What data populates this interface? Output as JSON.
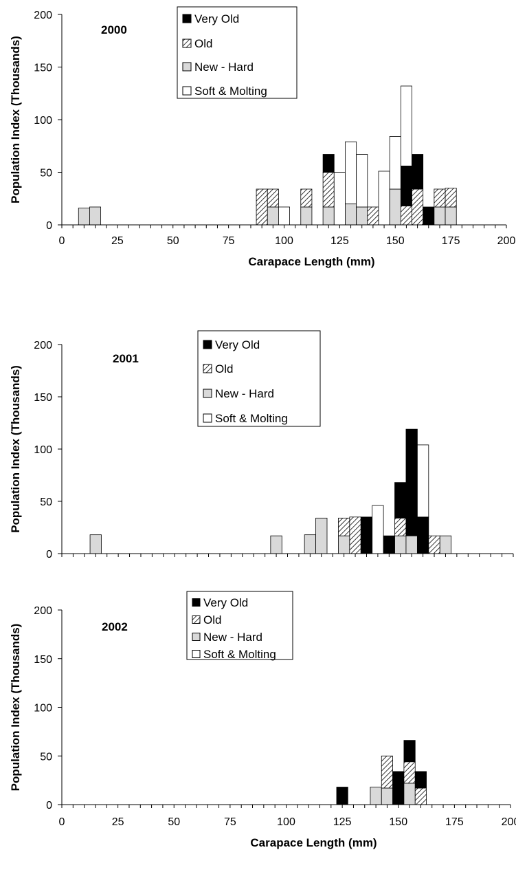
{
  "legend_labels": [
    "Very Old",
    "Old",
    "New - Hard",
    "Soft & Molting"
  ],
  "colors": {
    "very_old": "#000000",
    "old": "hatch",
    "new_hard": "#d9d9d9",
    "soft_molting": "#ffffff",
    "axis": "#000000"
  },
  "chart_data": [
    {
      "type": "bar",
      "stacked": true,
      "title": "2000",
      "xlabel": "Carapace Length (mm)",
      "ylabel": "Population Index (Thousands)",
      "xlim": [
        0,
        200
      ],
      "ylim": [
        0,
        200
      ],
      "xticks": [
        0,
        25,
        50,
        75,
        100,
        125,
        150,
        175,
        200
      ],
      "yticks": [
        0,
        50,
        100,
        150,
        200
      ],
      "show_x_tick_labels": true,
      "show_x_label": true,
      "legend_position": "top-center",
      "x": [
        10,
        15,
        90,
        95,
        100,
        110,
        120,
        125,
        130,
        135,
        140,
        145,
        150,
        155,
        160,
        165,
        170,
        175
      ],
      "series": [
        {
          "name": "New - Hard",
          "values": [
            16,
            17,
            0,
            17,
            0,
            17,
            17,
            0,
            20,
            17,
            0,
            0,
            34,
            0,
            0,
            0,
            17,
            17
          ]
        },
        {
          "name": "Old",
          "values": [
            0,
            0,
            34,
            17,
            0,
            17,
            33,
            0,
            0,
            0,
            17,
            0,
            0,
            18,
            34,
            0,
            17,
            18
          ]
        },
        {
          "name": "Very Old",
          "values": [
            0,
            0,
            0,
            0,
            0,
            0,
            17,
            0,
            0,
            0,
            0,
            0,
            0,
            38,
            33,
            17,
            0,
            0
          ]
        },
        {
          "name": "Soft & Molting",
          "values": [
            0,
            0,
            0,
            0,
            17,
            0,
            0,
            50,
            59,
            50,
            0,
            51,
            50,
            76,
            0,
            0,
            0,
            0
          ]
        }
      ]
    },
    {
      "type": "bar",
      "stacked": true,
      "title": "2001",
      "xlabel": "",
      "ylabel": "Population Index (Thousands)",
      "xlim": [
        0,
        200
      ],
      "ylim": [
        0,
        200
      ],
      "xticks": [
        0,
        25,
        50,
        75,
        100,
        125,
        150,
        175,
        200
      ],
      "yticks": [
        0,
        50,
        100,
        150,
        200
      ],
      "show_x_tick_labels": false,
      "show_x_label": false,
      "legend_position": "top-center",
      "x": [
        15,
        95,
        110,
        115,
        125,
        130,
        135,
        140,
        145,
        150,
        155,
        160,
        165,
        170
      ],
      "series": [
        {
          "name": "New - Hard",
          "values": [
            18,
            17,
            18,
            34,
            17,
            0,
            0,
            0,
            0,
            17,
            17,
            0,
            0,
            17
          ]
        },
        {
          "name": "Old",
          "values": [
            0,
            0,
            0,
            0,
            17,
            35,
            0,
            0,
            0,
            17,
            0,
            0,
            17,
            0
          ]
        },
        {
          "name": "Very Old",
          "values": [
            0,
            0,
            0,
            0,
            0,
            0,
            35,
            0,
            17,
            34,
            102,
            35,
            0,
            0
          ]
        },
        {
          "name": "Soft & Molting",
          "values": [
            0,
            0,
            0,
            0,
            0,
            0,
            0,
            46,
            0,
            0,
            0,
            69,
            0,
            0
          ]
        }
      ]
    },
    {
      "type": "bar",
      "stacked": true,
      "title": "2002",
      "xlabel": "Carapace Length (mm)",
      "ylabel": "Population Index (Thousands)",
      "xlim": [
        0,
        200
      ],
      "ylim": [
        0,
        200
      ],
      "xticks": [
        0,
        25,
        50,
        75,
        100,
        125,
        150,
        175,
        200
      ],
      "yticks": [
        0,
        50,
        100,
        150,
        200
      ],
      "show_x_tick_labels": true,
      "show_x_label": true,
      "legend_position": "top-center",
      "x": [
        125,
        140,
        145,
        150,
        155,
        160
      ],
      "series": [
        {
          "name": "New - Hard",
          "values": [
            0,
            18,
            17,
            0,
            22,
            0
          ]
        },
        {
          "name": "Old",
          "values": [
            0,
            0,
            33,
            0,
            22,
            17
          ]
        },
        {
          "name": "Very Old",
          "values": [
            18,
            0,
            0,
            34,
            22,
            17
          ]
        },
        {
          "name": "Soft & Molting",
          "values": [
            0,
            0,
            0,
            0,
            0,
            0
          ]
        }
      ]
    }
  ]
}
